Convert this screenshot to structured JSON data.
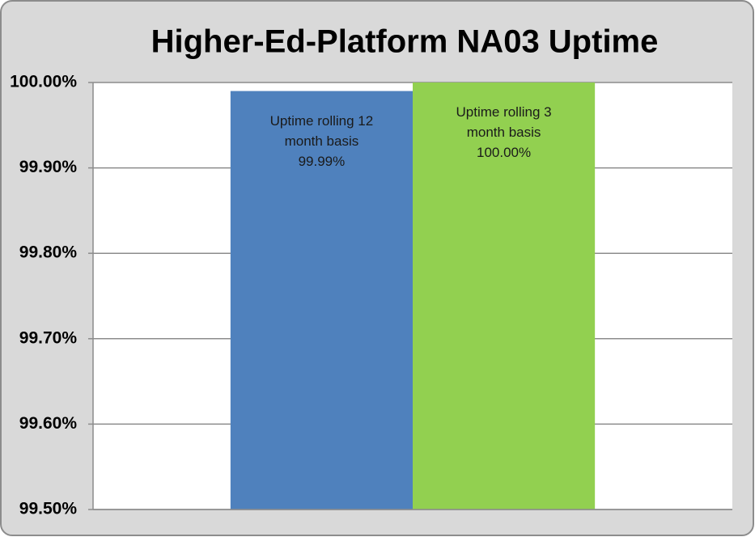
{
  "chart_data": {
    "type": "bar",
    "title": "Higher-Ed-Platform NA03 Uptime",
    "categories": [
      null
    ],
    "series": [
      {
        "name": "Uptime rolling 12 month basis",
        "color": "#4f81bd",
        "values": [
          99.99
        ],
        "value_labels": [
          "99.99%"
        ]
      },
      {
        "name": "Uptime rolling 3 month basis",
        "color": "#92d050",
        "values": [
          100.0
        ],
        "value_labels": [
          "100.00%"
        ]
      }
    ],
    "ylim": [
      99.5,
      100.0
    ],
    "yticks": [
      {
        "value": 99.5,
        "label": "99.50%"
      },
      {
        "value": 99.6,
        "label": "99.60%"
      },
      {
        "value": 99.7,
        "label": "99.70%"
      },
      {
        "value": 99.8,
        "label": "99.80%"
      },
      {
        "value": 99.9,
        "label": "99.90%"
      },
      {
        "value": 100.0,
        "label": "100.00%"
      }
    ],
    "grid": true,
    "legend": false
  }
}
